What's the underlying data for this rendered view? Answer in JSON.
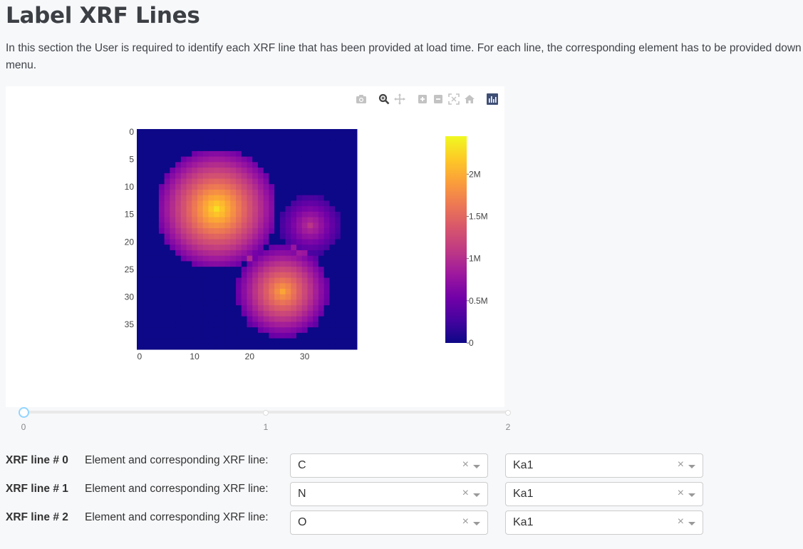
{
  "page": {
    "title": "Label XRF Lines",
    "intro": "In this section the User is required to identify each XRF line that has been provided at load time. For each line, the corresponding element has to be provided down menu."
  },
  "modebar": {
    "icons": [
      "camera-icon",
      "zoom-icon",
      "pan-icon",
      "zoom-in-icon",
      "zoom-out-icon",
      "autoscale-icon",
      "reset-axes-icon",
      "plotly-logo-icon"
    ]
  },
  "chart_data": {
    "type": "heatmap",
    "rows": 40,
    "cols": 40,
    "x_ticks": [
      0,
      10,
      20,
      30
    ],
    "y_ticks": [
      0,
      5,
      10,
      15,
      20,
      25,
      30,
      35
    ],
    "y_reversed": true,
    "blobs": [
      {
        "cx": 14,
        "cy": 14,
        "r": 11,
        "peak": 2300000
      },
      {
        "cx": 26,
        "cy": 29,
        "r": 8.5,
        "peak": 1950000
      },
      {
        "cx": 31,
        "cy": 17,
        "r": 5.5,
        "peak": 1050000
      }
    ],
    "colorscale": "plasma",
    "zrange": [
      0,
      2450000
    ],
    "colorbar": {
      "ticks": [
        0,
        500000,
        1000000,
        1500000,
        2000000
      ],
      "tick_labels": [
        "0",
        "0.5M",
        "1M",
        "1.5M",
        "2M"
      ]
    }
  },
  "slider": {
    "marks": [
      "0",
      "1",
      "2"
    ],
    "value": 0
  },
  "xrf_rows": [
    {
      "name": "XRF line # 0",
      "label": "Element and corresponding XRF line:",
      "element": "C",
      "line": "Ka1",
      "clear": "×"
    },
    {
      "name": "XRF line # 1",
      "label": "Element and corresponding XRF line:",
      "element": "N",
      "line": "Ka1",
      "clear": "×"
    },
    {
      "name": "XRF line # 2",
      "label": "Element and corresponding XRF line:",
      "element": "O",
      "line": "Ka1",
      "clear": "×"
    }
  ]
}
